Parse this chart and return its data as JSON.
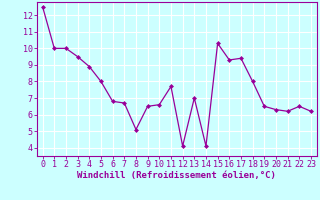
{
  "x": [
    0,
    1,
    2,
    3,
    4,
    5,
    6,
    7,
    8,
    9,
    10,
    11,
    12,
    13,
    14,
    15,
    16,
    17,
    18,
    19,
    20,
    21,
    22,
    23
  ],
  "y": [
    12.5,
    10.0,
    10.0,
    9.5,
    8.9,
    8.0,
    6.8,
    6.7,
    5.1,
    6.5,
    6.6,
    7.7,
    4.1,
    7.0,
    4.1,
    10.3,
    9.3,
    9.4,
    8.0,
    6.5,
    6.3,
    6.2,
    6.5,
    6.2
  ],
  "line_color": "#990099",
  "marker": "D",
  "marker_size": 2,
  "bg_color": "#ccffff",
  "grid_color": "#ffffff",
  "xlabel": "Windchill (Refroidissement éolien,°C)",
  "xlabel_color": "#990099",
  "tick_color": "#990099",
  "ylim": [
    3.5,
    12.8
  ],
  "xlim": [
    -0.5,
    23.5
  ],
  "yticks": [
    4,
    5,
    6,
    7,
    8,
    9,
    10,
    11,
    12
  ],
  "xticks": [
    0,
    1,
    2,
    3,
    4,
    5,
    6,
    7,
    8,
    9,
    10,
    11,
    12,
    13,
    14,
    15,
    16,
    17,
    18,
    19,
    20,
    21,
    22,
    23
  ],
  "spine_color": "#990099",
  "label_fontsize": 6.5,
  "tick_fontsize": 6.0
}
